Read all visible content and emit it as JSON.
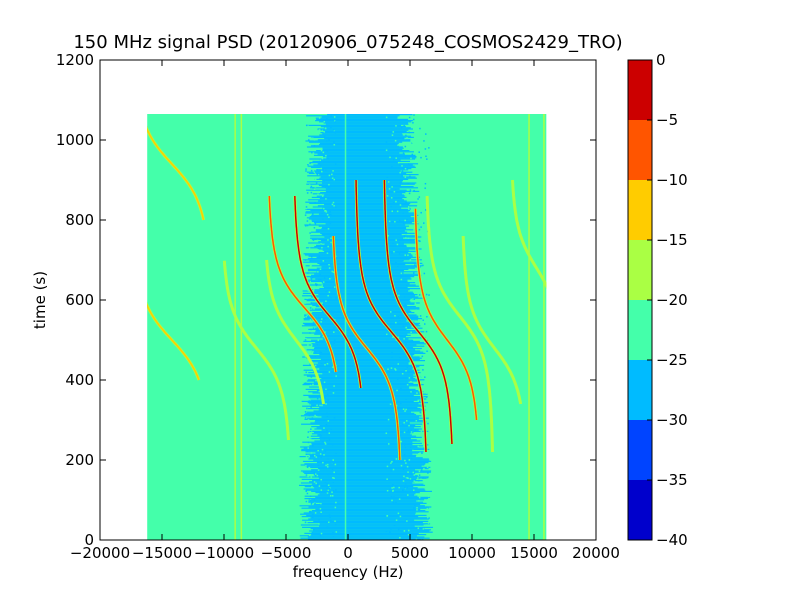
{
  "chart_data": {
    "type": "heatmap",
    "title": "150 MHz signal PSD (20120906_075248_COSMOS2429_TRO)",
    "xlabel": "frequency (Hz)",
    "ylabel": "time (s)",
    "xlim": [
      -20000,
      20000
    ],
    "ylim": [
      0,
      1200
    ],
    "xticks": [
      -20000,
      -15000,
      -10000,
      -5000,
      0,
      5000,
      10000,
      15000,
      20000
    ],
    "xtick_labels": [
      "−20000",
      "−15000",
      "−10000",
      "−5000",
      "0",
      "5000",
      "10000",
      "15000",
      "20000"
    ],
    "yticks": [
      0,
      200,
      400,
      600,
      800,
      1000,
      1200
    ],
    "ytick_labels": [
      "0",
      "200",
      "400",
      "600",
      "800",
      "1000",
      "1200"
    ],
    "data_extent": {
      "x": [
        -16200,
        16000
      ],
      "y": [
        0,
        1065
      ]
    },
    "background_level": -22.5,
    "central_band": {
      "x_range": [
        -3500,
        6500
      ],
      "core_x_range": [
        -1000,
        4000
      ],
      "level": -27.5
    },
    "fixed_lines": [
      {
        "x": -9100,
        "level": -17.5
      },
      {
        "x": -8600,
        "level": -17.5
      },
      {
        "x": -200,
        "level": -22.5
      },
      {
        "x": 14600,
        "level": -17.5
      },
      {
        "x": 15800,
        "level": -17.5
      }
    ],
    "traces": [
      {
        "center_x": -14200,
        "center_y": 500,
        "amplitude_hz": 3600,
        "y_range": [
          400,
          600
        ],
        "peak_level": -12.5
      },
      {
        "center_x": -14200,
        "center_y": 940,
        "amplitude_hz": 3600,
        "y_range": [
          800,
          1065
        ],
        "peak_level": -12.5
      },
      {
        "center_x": -7400,
        "center_y": 480,
        "amplitude_hz": 3200,
        "y_range": [
          250,
          700
        ],
        "peak_level": -17.5
      },
      {
        "center_x": -4200,
        "center_y": 500,
        "amplitude_hz": 3000,
        "y_range": [
          340,
          700
        ],
        "peak_level": -17.5
      },
      {
        "center_x": -3500,
        "center_y": 580,
        "amplitude_hz": 3400,
        "y_range": [
          420,
          860
        ],
        "peak_level": -7.5
      },
      {
        "center_x": -1500,
        "center_y": 560,
        "amplitude_hz": 3300,
        "y_range": [
          380,
          860
        ],
        "peak_level": -2.5
      },
      {
        "center_x": 1500,
        "center_y": 480,
        "amplitude_hz": 3200,
        "y_range": [
          200,
          760
        ],
        "peak_level": -7.5
      },
      {
        "center_x": 3500,
        "center_y": 520,
        "amplitude_hz": 3300,
        "y_range": [
          220,
          900
        ],
        "peak_level": -2.5
      },
      {
        "center_x": 5700,
        "center_y": 520,
        "amplitude_hz": 3200,
        "y_range": [
          240,
          900
        ],
        "peak_level": -2.5
      },
      {
        "center_x": 8000,
        "center_y": 500,
        "amplitude_hz": 3000,
        "y_range": [
          300,
          830
        ],
        "peak_level": -7.5
      },
      {
        "center_x": 9000,
        "center_y": 560,
        "amplitude_hz": 3100,
        "y_range": [
          220,
          860
        ],
        "peak_level": -17.5
      },
      {
        "center_x": 11800,
        "center_y": 480,
        "amplitude_hz": 3000,
        "y_range": [
          340,
          760
        ],
        "peak_level": -17.5
      },
      {
        "center_x": 15200,
        "center_y": 680,
        "amplitude_hz": 2400,
        "y_range": [
          500,
          900
        ],
        "peak_level": -17.5
      }
    ],
    "colorbar": {
      "range": [
        -40,
        0
      ],
      "ticks": [
        0,
        -5,
        -10,
        -15,
        -20,
        -25,
        -30,
        -35,
        -40
      ],
      "tick_labels": [
        "0",
        "−5",
        "−10",
        "−15",
        "−20",
        "−25",
        "−30",
        "−35",
        "−40"
      ],
      "levels": [
        {
          "from": -40,
          "to": -35,
          "color": "#0000cc"
        },
        {
          "from": -35,
          "to": -30,
          "color": "#0044ff"
        },
        {
          "from": -30,
          "to": -25,
          "color": "#00bbff"
        },
        {
          "from": -25,
          "to": -20,
          "color": "#44ffaa"
        },
        {
          "from": -20,
          "to": -15,
          "color": "#aaff44"
        },
        {
          "from": -15,
          "to": -10,
          "color": "#ffcc00"
        },
        {
          "from": -10,
          "to": -5,
          "color": "#ff5500"
        },
        {
          "from": -5,
          "to": 0,
          "color": "#cc0000"
        }
      ]
    }
  }
}
